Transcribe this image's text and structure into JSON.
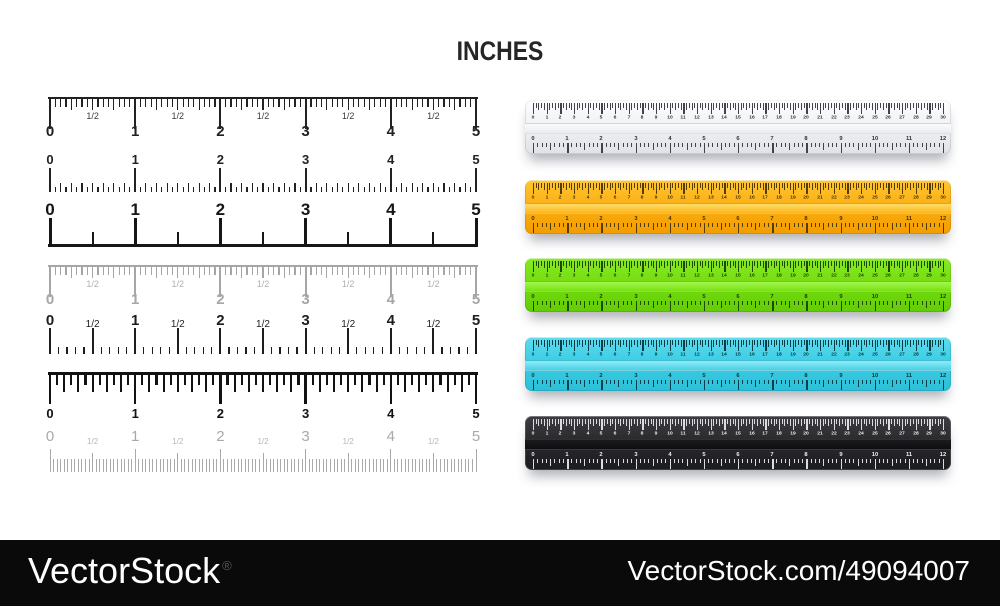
{
  "title": "INCHES",
  "watermark": {
    "brand": "VectorStock",
    "registered": "®",
    "site_ref": "VectorStock.com/49094007",
    "bar_color": "#0a0a0a"
  },
  "left_panel": {
    "scales": [
      {
        "id": "scale-topline-black",
        "style": "topline",
        "color": "#222222",
        "label_color": "#3a3a3a",
        "numbers": [
          "0",
          "1",
          "2",
          "3",
          "4",
          "5"
        ],
        "half_label": "1/2"
      },
      {
        "id": "scale-dotted",
        "style": "dotted",
        "color": "#222222",
        "numbers": [
          "0",
          "1",
          "2",
          "3",
          "4",
          "5"
        ]
      },
      {
        "id": "scale-baseline",
        "style": "baseline",
        "color": "#161616",
        "numbers": [
          "0",
          "1",
          "2",
          "3",
          "4",
          "5"
        ]
      },
      {
        "id": "scale-topline-gray",
        "style": "topline",
        "color": "#a6a6a6",
        "label_color": "#b0b0b0",
        "numbers": [
          "0",
          "1",
          "2",
          "3",
          "4",
          "5"
        ],
        "half_label": "1/2"
      },
      {
        "id": "scale-halves",
        "style": "halves",
        "color": "#1d1d1d",
        "label_color": "#222222",
        "numbers": [
          "0",
          "1",
          "2",
          "3",
          "4",
          "5"
        ],
        "half_label": "1/2"
      },
      {
        "id": "scale-boldcomb",
        "style": "boldcomb",
        "color": "#111111",
        "numbers": [
          "0",
          "1",
          "2",
          "3",
          "4",
          "5"
        ]
      },
      {
        "id": "scale-finecomb",
        "style": "finecomb",
        "color": "#a9a9a9",
        "label_color": "#b5b5b5",
        "numbers": [
          "0",
          "1",
          "2",
          "3",
          "4",
          "5"
        ],
        "half_label": "1/2"
      }
    ]
  },
  "right_panel": {
    "cm_numbers": [
      "0",
      "1",
      "2",
      "3",
      "4",
      "5",
      "6",
      "7",
      "8",
      "9",
      "10",
      "11",
      "12",
      "13",
      "14",
      "15",
      "16",
      "17",
      "18",
      "19",
      "20",
      "21",
      "22",
      "23",
      "24",
      "25",
      "26",
      "27",
      "28",
      "29",
      "30"
    ],
    "inch_numbers": [
      "0",
      "1",
      "2",
      "3",
      "4",
      "5",
      "6",
      "7",
      "8",
      "9",
      "10",
      "11",
      "12"
    ],
    "rulers": [
      {
        "id": "ruler-white",
        "body_top": "#fdfdfe",
        "body_mid": "#f1f2f5",
        "body_bottom": "#dfe2e7",
        "band_top": "#fafbfc",
        "band_bottom": "#e9ecf0",
        "tick_color": "#42424c",
        "text_color": "#32323a",
        "dark": false
      },
      {
        "id": "ruler-yellow",
        "body_top": "#ffc832",
        "body_mid": "#fbaf14",
        "body_bottom": "#f29d00",
        "band_top": "#ffdd67",
        "band_bottom": "#fcb61f",
        "tick_color": "#543c00",
        "text_color": "#463200",
        "dark": false
      },
      {
        "id": "ruler-green",
        "body_top": "#8aea24",
        "body_mid": "#74dd10",
        "body_bottom": "#63cc05",
        "band_top": "#a4f74e",
        "band_bottom": "#79e014",
        "tick_color": "#1e4a00",
        "text_color": "#1a4000",
        "dark": false
      },
      {
        "id": "ruler-cyan",
        "body_top": "#5edcee",
        "body_mid": "#3bcde4",
        "body_bottom": "#2cbfd8",
        "band_top": "#90eaf6",
        "band_bottom": "#46d2e8",
        "tick_color": "#063e4a",
        "text_color": "#053640",
        "dark": false
      },
      {
        "id": "ruler-black",
        "body_top": "#3d3d42",
        "body_mid": "#2a2a2e",
        "body_bottom": "#1c1c20",
        "band_top": "#1b1b1e",
        "band_bottom": "#0e0e10",
        "tick_color": "#dcdcde",
        "text_color": "#f2f2f4",
        "dark": true
      }
    ]
  }
}
